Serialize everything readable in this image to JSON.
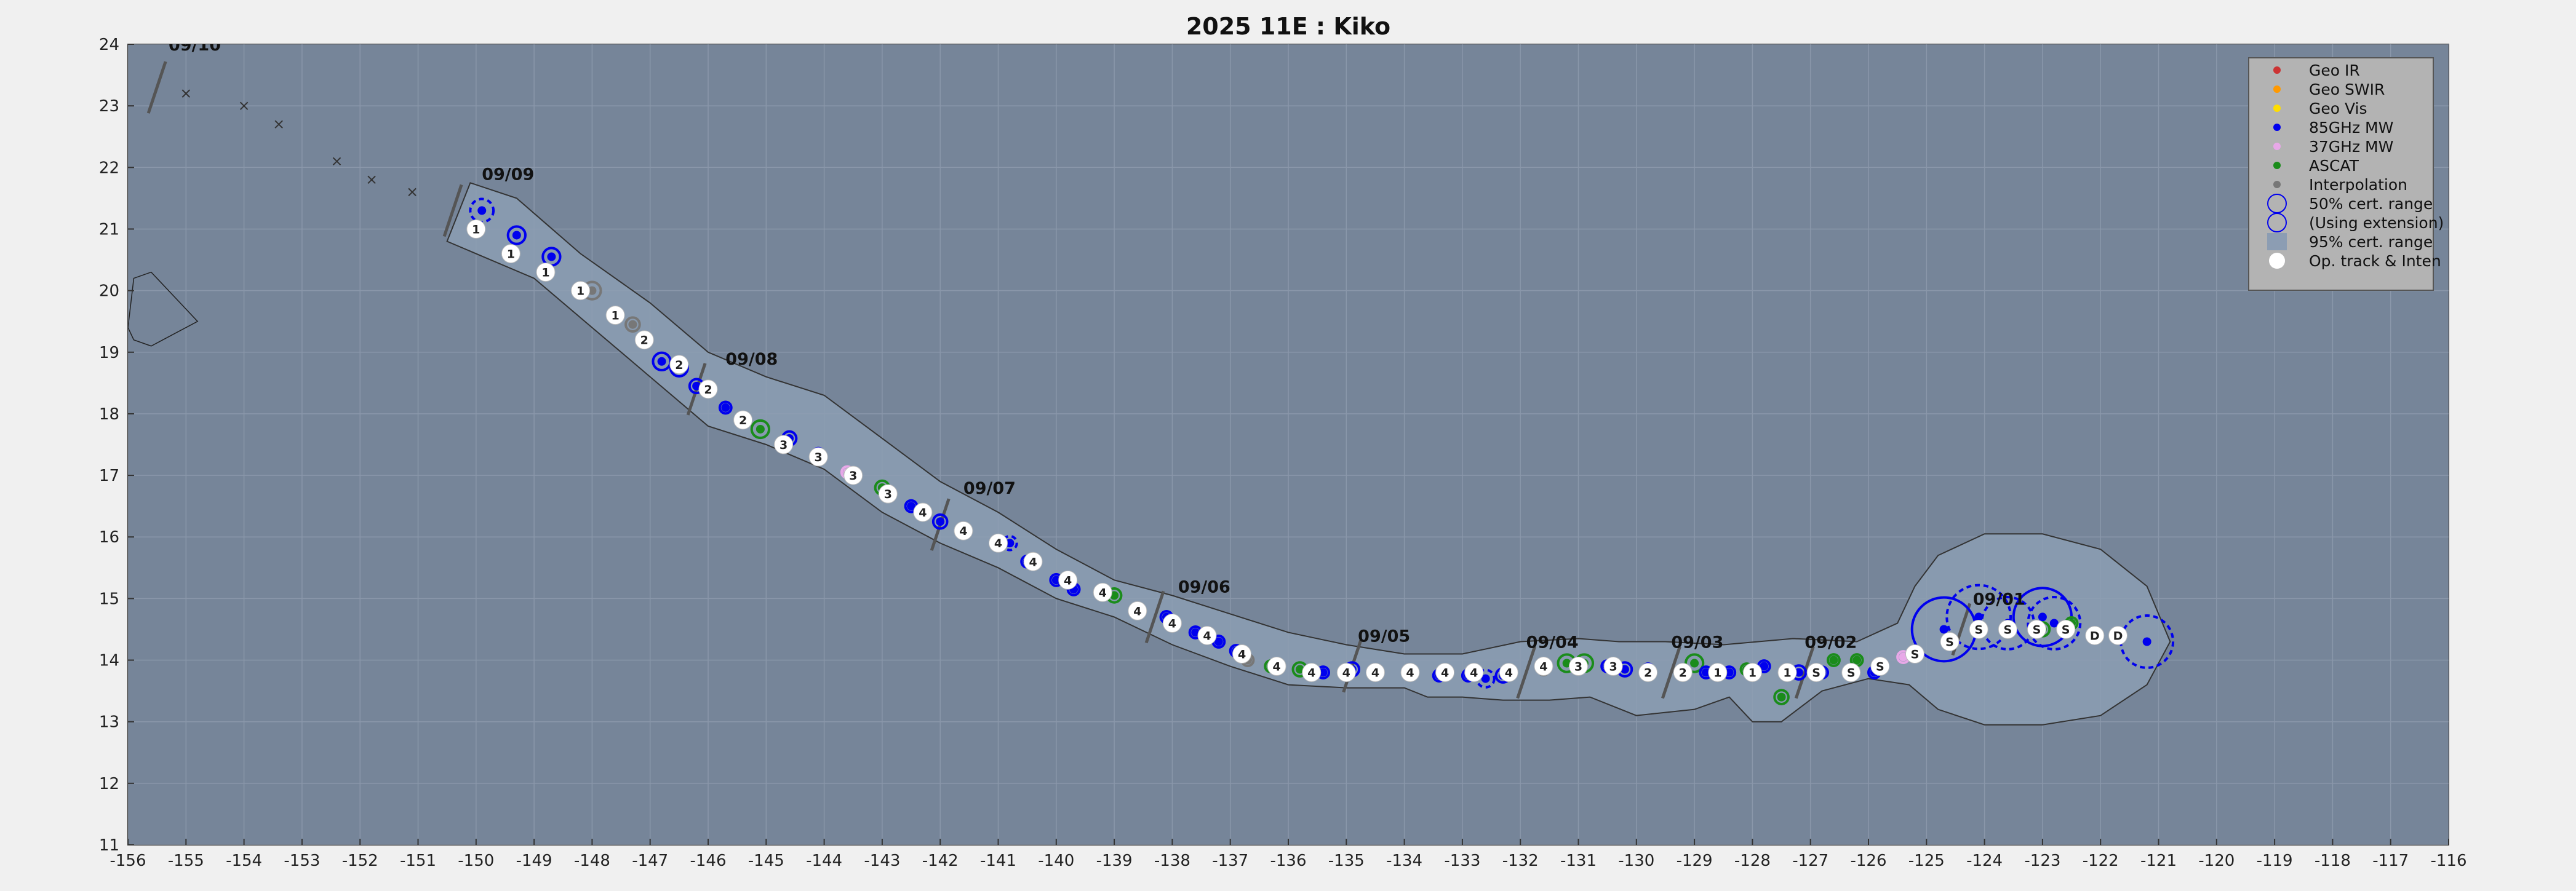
{
  "chart_data": {
    "type": "scatter",
    "title": "2025  11E :  Kiko",
    "xlim": [
      -156,
      -116
    ],
    "ylim": [
      11,
      24
    ],
    "x_ticks": [
      "-156",
      "-155",
      "-154",
      "-153",
      "-152",
      "-151",
      "-150",
      "-149",
      "-148",
      "-147",
      "-146",
      "-145",
      "-144",
      "-143",
      "-142",
      "-141",
      "-140",
      "-139",
      "-138",
      "-137",
      "-136",
      "-135",
      "-134",
      "-133",
      "-132",
      "-131",
      "-130",
      "-129",
      "-128",
      "-127",
      "-126",
      "-125",
      "-124",
      "-123",
      "-122",
      "-121",
      "-120",
      "-119",
      "-118",
      "-117",
      "-116"
    ],
    "y_ticks": [
      "11",
      "12",
      "13",
      "14",
      "15",
      "16",
      "17",
      "18",
      "19",
      "20",
      "21",
      "22",
      "23",
      "24"
    ],
    "grid": true,
    "legend_position": "top-right",
    "legend": [
      "Geo IR",
      "Geo SWIR",
      "Geo Vis",
      "85GHz MW",
      "37GHz MW",
      "ASCAT",
      "Interpolation",
      "50% cert. range",
      "(Using extension)",
      "95% cert. range",
      "Op. track & Inten"
    ],
    "colors": {
      "plot_bg": "#768599",
      "cone": "#8c9db3",
      "geo_ir": "#cc3333",
      "geo_swir": "#ff9900",
      "geo_vis": "#ffdd00",
      "mw85": "#0000ee",
      "mw37": "#e8a8e8",
      "ascat": "#1a8c1a",
      "interp": "#777777",
      "op": "#ffffff"
    },
    "date_labels": [
      {
        "text": "09/10",
        "x": -155.3,
        "y": 23.9
      },
      {
        "text": "09/09",
        "x": -149.9,
        "y": 21.8
      },
      {
        "text": "09/08",
        "x": -145.7,
        "y": 18.8
      },
      {
        "text": "09/07",
        "x": -141.6,
        "y": 16.7
      },
      {
        "text": "09/06",
        "x": -137.9,
        "y": 15.1
      },
      {
        "text": "09/05",
        "x": -134.8,
        "y": 14.3
      },
      {
        "text": "09/04",
        "x": -131.9,
        "y": 14.2
      },
      {
        "text": "09/03",
        "x": -129.4,
        "y": 14.2
      },
      {
        "text": "09/02",
        "x": -127.1,
        "y": 14.2
      },
      {
        "text": "09/01",
        "x": -124.2,
        "y": 14.9
      }
    ],
    "day_ticks": [
      {
        "x": -155.5,
        "y": 23.3
      },
      {
        "x": -150.4,
        "y": 21.3
      },
      {
        "x": -146.2,
        "y": 18.4
      },
      {
        "x": -142.0,
        "y": 16.2
      },
      {
        "x": -138.3,
        "y": 14.7
      },
      {
        "x": -134.9,
        "y": 13.9
      },
      {
        "x": -131.9,
        "y": 13.8
      },
      {
        "x": -129.4,
        "y": 13.8
      },
      {
        "x": -127.1,
        "y": 13.8
      },
      {
        "x": -124.4,
        "y": 14.5
      }
    ],
    "cone_outline": [
      [
        -150.5,
        20.8
      ],
      [
        -150.1,
        21.75
      ],
      [
        -149.3,
        21.5
      ],
      [
        -148.2,
        20.6
      ],
      [
        -147.0,
        19.8
      ],
      [
        -146.0,
        19.0
      ],
      [
        -145.0,
        18.6
      ],
      [
        -144.0,
        18.3
      ],
      [
        -143.0,
        17.6
      ],
      [
        -142.0,
        16.9
      ],
      [
        -141.0,
        16.4
      ],
      [
        -140.0,
        15.8
      ],
      [
        -139.0,
        15.3
      ],
      [
        -138.0,
        15.05
      ],
      [
        -137.0,
        14.75
      ],
      [
        -136.0,
        14.45
      ],
      [
        -135.0,
        14.25
      ],
      [
        -134.0,
        14.1
      ],
      [
        -133.0,
        14.1
      ],
      [
        -132.0,
        14.3
      ],
      [
        -131.0,
        14.35
      ],
      [
        -130.3,
        14.3
      ],
      [
        -129.5,
        14.3
      ],
      [
        -128.5,
        14.25
      ],
      [
        -127.3,
        14.35
      ],
      [
        -126.2,
        14.3
      ],
      [
        -125.5,
        14.6
      ],
      [
        -125.2,
        15.2
      ],
      [
        -124.8,
        15.7
      ],
      [
        -124.0,
        16.05
      ],
      [
        -123.0,
        16.05
      ],
      [
        -122.0,
        15.8
      ],
      [
        -121.2,
        15.2
      ],
      [
        -120.8,
        14.3
      ],
      [
        -121.2,
        13.6
      ],
      [
        -122.0,
        13.1
      ],
      [
        -123.0,
        12.95
      ],
      [
        -124.0,
        12.95
      ],
      [
        -124.8,
        13.2
      ],
      [
        -125.3,
        13.6
      ],
      [
        -126.0,
        13.7
      ],
      [
        -126.8,
        13.5
      ],
      [
        -127.5,
        13.0
      ],
      [
        -128.0,
        13.0
      ],
      [
        -128.4,
        13.4
      ],
      [
        -129.0,
        13.2
      ],
      [
        -130.0,
        13.1
      ],
      [
        -130.8,
        13.4
      ],
      [
        -131.5,
        13.35
      ],
      [
        -132.3,
        13.35
      ],
      [
        -133.0,
        13.4
      ],
      [
        -133.6,
        13.4
      ],
      [
        -134.0,
        13.55
      ],
      [
        -135.0,
        13.55
      ],
      [
        -136.0,
        13.6
      ],
      [
        -137.0,
        13.9
      ],
      [
        -138.0,
        14.25
      ],
      [
        -139.0,
        14.7
      ],
      [
        -140.0,
        15.0
      ],
      [
        -141.0,
        15.5
      ],
      [
        -142.0,
        15.9
      ],
      [
        -143.0,
        16.4
      ],
      [
        -144.0,
        17.1
      ],
      [
        -145.0,
        17.5
      ],
      [
        -146.0,
        17.8
      ],
      [
        -147.0,
        18.6
      ],
      [
        -148.0,
        19.4
      ],
      [
        -149.0,
        20.2
      ],
      [
        -150.0,
        20.6
      ]
    ],
    "op_track": [
      {
        "x": -150,
        "y": 21.0,
        "label": "1"
      },
      {
        "x": -149.4,
        "y": 20.6,
        "label": "1"
      },
      {
        "x": -148.8,
        "y": 20.3,
        "label": "1"
      },
      {
        "x": -148.2,
        "y": 20.0,
        "label": "1"
      },
      {
        "x": -147.6,
        "y": 19.6,
        "label": "1"
      },
      {
        "x": -147.1,
        "y": 19.2,
        "label": "2"
      },
      {
        "x": -146.5,
        "y": 18.8,
        "label": "2"
      },
      {
        "x": -146.0,
        "y": 18.4,
        "label": "2"
      },
      {
        "x": -145.4,
        "y": 17.9,
        "label": "2"
      },
      {
        "x": -144.7,
        "y": 17.5,
        "label": "3"
      },
      {
        "x": -144.1,
        "y": 17.3,
        "label": "3"
      },
      {
        "x": -143.5,
        "y": 17.0,
        "label": "3"
      },
      {
        "x": -142.9,
        "y": 16.7,
        "label": "3"
      },
      {
        "x": -142.3,
        "y": 16.4,
        "label": "4"
      },
      {
        "x": -141.6,
        "y": 16.1,
        "label": "4"
      },
      {
        "x": -141.0,
        "y": 15.9,
        "label": "4"
      },
      {
        "x": -140.4,
        "y": 15.6,
        "label": "4"
      },
      {
        "x": -139.8,
        "y": 15.3,
        "label": "4"
      },
      {
        "x": -139.2,
        "y": 15.1,
        "label": "4"
      },
      {
        "x": -138.6,
        "y": 14.8,
        "label": "4"
      },
      {
        "x": -138.0,
        "y": 14.6,
        "label": "4"
      },
      {
        "x": -137.4,
        "y": 14.4,
        "label": "4"
      },
      {
        "x": -136.8,
        "y": 14.1,
        "label": "4"
      },
      {
        "x": -136.2,
        "y": 13.9,
        "label": "4"
      },
      {
        "x": -135.6,
        "y": 13.8,
        "label": "4"
      },
      {
        "x": -135.0,
        "y": 13.8,
        "label": "4"
      },
      {
        "x": -134.5,
        "y": 13.8,
        "label": "4"
      },
      {
        "x": -133.9,
        "y": 13.8,
        "label": "4"
      },
      {
        "x": -133.3,
        "y": 13.8,
        "label": "4"
      },
      {
        "x": -132.8,
        "y": 13.8,
        "label": "4"
      },
      {
        "x": -132.2,
        "y": 13.8,
        "label": "4"
      },
      {
        "x": -131.6,
        "y": 13.9,
        "label": "4"
      },
      {
        "x": -131.0,
        "y": 13.9,
        "label": "3"
      },
      {
        "x": -130.4,
        "y": 13.9,
        "label": "3"
      },
      {
        "x": -129.8,
        "y": 13.8,
        "label": "2"
      },
      {
        "x": -129.2,
        "y": 13.8,
        "label": "2"
      },
      {
        "x": -128.6,
        "y": 13.8,
        "label": "1"
      },
      {
        "x": -128.0,
        "y": 13.8,
        "label": "1"
      },
      {
        "x": -127.4,
        "y": 13.8,
        "label": "1"
      },
      {
        "x": -126.9,
        "y": 13.8,
        "label": "S"
      },
      {
        "x": -126.3,
        "y": 13.8,
        "label": "S"
      },
      {
        "x": -125.8,
        "y": 13.9,
        "label": "S"
      },
      {
        "x": -125.2,
        "y": 14.1,
        "label": "S"
      },
      {
        "x": -124.6,
        "y": 14.3,
        "label": "S"
      },
      {
        "x": -124.1,
        "y": 14.5,
        "label": "S"
      },
      {
        "x": -123.6,
        "y": 14.5,
        "label": "S"
      },
      {
        "x": -123.1,
        "y": 14.5,
        "label": "S"
      },
      {
        "x": -122.6,
        "y": 14.5,
        "label": "S"
      },
      {
        "x": -122.1,
        "y": 14.4,
        "label": "D"
      },
      {
        "x": -121.7,
        "y": 14.4,
        "label": "D"
      }
    ],
    "fixes": [
      {
        "x": -149.9,
        "y": 21.3,
        "type": "mw85",
        "r": 0.2,
        "dashed": true
      },
      {
        "x": -149.3,
        "y": 20.9,
        "type": "mw85",
        "r": 0.15
      },
      {
        "x": -148.7,
        "y": 20.55,
        "type": "mw85",
        "r": 0.15
      },
      {
        "x": -148.0,
        "y": 20.0,
        "type": "interp",
        "r": 0.15
      },
      {
        "x": -147.3,
        "y": 19.45,
        "type": "interp",
        "r": 0.12
      },
      {
        "x": -146.8,
        "y": 18.85,
        "type": "mw85",
        "r": 0.15
      },
      {
        "x": -146.5,
        "y": 18.75,
        "type": "mw85",
        "r": 0.15
      },
      {
        "x": -146.2,
        "y": 18.45,
        "type": "mw85",
        "r": 0.12
      },
      {
        "x": -145.7,
        "y": 18.1,
        "type": "mw85",
        "r": 0.1
      },
      {
        "x": -145.1,
        "y": 17.75,
        "type": "ascat",
        "r": 0.15
      },
      {
        "x": -144.6,
        "y": 17.6,
        "type": "mw85",
        "r": 0.12
      },
      {
        "x": -144.1,
        "y": 17.35,
        "type": "mw85",
        "r": 0.1
      },
      {
        "x": -143.6,
        "y": 17.05,
        "type": "mw37",
        "r": 0.1
      },
      {
        "x": -143.0,
        "y": 16.8,
        "type": "ascat",
        "r": 0.12
      },
      {
        "x": -142.5,
        "y": 16.5,
        "type": "mw85",
        "r": 0.1
      },
      {
        "x": -142.0,
        "y": 16.25,
        "type": "mw85",
        "r": 0.12
      },
      {
        "x": -140.8,
        "y": 15.9,
        "type": "mw85",
        "r": 0.12,
        "dashed": true
      },
      {
        "x": -140.5,
        "y": 15.6,
        "type": "mw85",
        "r": 0.1
      },
      {
        "x": -140.0,
        "y": 15.3,
        "type": "mw85",
        "r": 0.1
      },
      {
        "x": -139.7,
        "y": 15.15,
        "type": "mw85",
        "r": 0.1
      },
      {
        "x": -139.0,
        "y": 15.05,
        "type": "ascat",
        "r": 0.12
      },
      {
        "x": -138.6,
        "y": 14.8,
        "type": "mw85",
        "r": 0.1
      },
      {
        "x": -138.1,
        "y": 14.7,
        "type": "mw85",
        "r": 0.1
      },
      {
        "x": -137.6,
        "y": 14.45,
        "type": "mw85",
        "r": 0.1
      },
      {
        "x": -137.2,
        "y": 14.3,
        "type": "mw85",
        "r": 0.1
      },
      {
        "x": -136.9,
        "y": 14.15,
        "type": "mw85",
        "r": 0.1
      },
      {
        "x": -136.7,
        "y": 14.0,
        "type": "interp",
        "r": 0.1
      },
      {
        "x": -136.3,
        "y": 13.9,
        "type": "ascat",
        "r": 0.1
      },
      {
        "x": -135.8,
        "y": 13.85,
        "type": "ascat",
        "r": 0.12
      },
      {
        "x": -135.4,
        "y": 13.8,
        "type": "mw85",
        "r": 0.1
      },
      {
        "x": -134.9,
        "y": 13.85,
        "type": "mw85",
        "r": 0.12
      },
      {
        "x": -133.4,
        "y": 13.75,
        "type": "mw85",
        "r": 0.1
      },
      {
        "x": -132.9,
        "y": 13.75,
        "type": "mw85",
        "r": 0.1
      },
      {
        "x": -132.6,
        "y": 13.7,
        "type": "mw85",
        "r": 0.15,
        "dashed": true
      },
      {
        "x": -132.3,
        "y": 13.75,
        "type": "mw85",
        "r": 0.12
      },
      {
        "x": -131.6,
        "y": 13.85,
        "type": "interp",
        "r": 0.1
      },
      {
        "x": -131.2,
        "y": 13.95,
        "type": "ascat",
        "r": 0.15
      },
      {
        "x": -130.9,
        "y": 13.95,
        "type": "ascat",
        "r": 0.15
      },
      {
        "x": -130.5,
        "y": 13.9,
        "type": "mw85",
        "r": 0.1
      },
      {
        "x": -130.2,
        "y": 13.85,
        "type": "mw85",
        "r": 0.12
      },
      {
        "x": -129.8,
        "y": 13.85,
        "type": "mw85",
        "r": 0.1
      },
      {
        "x": -129.0,
        "y": 13.95,
        "type": "ascat",
        "r": 0.15
      },
      {
        "x": -128.8,
        "y": 13.8,
        "type": "mw85",
        "r": 0.1
      },
      {
        "x": -128.4,
        "y": 13.8,
        "type": "mw85",
        "r": 0.1
      },
      {
        "x": -128.1,
        "y": 13.85,
        "type": "ascat",
        "r": 0.1
      },
      {
        "x": -127.8,
        "y": 13.9,
        "type": "mw85",
        "r": 0.1
      },
      {
        "x": -127.5,
        "y": 13.4,
        "type": "ascat",
        "r": 0.12
      },
      {
        "x": -127.2,
        "y": 13.8,
        "type": "mw85",
        "r": 0.12
      },
      {
        "x": -126.8,
        "y": 13.8,
        "type": "mw85",
        "r": 0.1
      },
      {
        "x": -126.6,
        "y": 14.0,
        "type": "ascat",
        "r": 0.1
      },
      {
        "x": -126.2,
        "y": 14.0,
        "type": "ascat",
        "r": 0.1
      },
      {
        "x": -125.9,
        "y": 13.8,
        "type": "mw85",
        "r": 0.1
      },
      {
        "x": -125.4,
        "y": 14.05,
        "type": "mw37",
        "r": 0.1
      },
      {
        "x": -124.7,
        "y": 14.5,
        "type": "mw85",
        "r": 0.55
      },
      {
        "x": -124.1,
        "y": 14.7,
        "type": "mw85",
        "r": 0.55,
        "dashed": true
      },
      {
        "x": -123.6,
        "y": 14.6,
        "type": "mw85",
        "r": 0.45,
        "dashed": true
      },
      {
        "x": -123.0,
        "y": 14.7,
        "type": "mw85",
        "r": 0.5
      },
      {
        "x": -122.8,
        "y": 14.6,
        "type": "mw85",
        "r": 0.45,
        "dashed": true
      },
      {
        "x": -123.0,
        "y": 14.5,
        "type": "ascat",
        "r": 0.12
      },
      {
        "x": -122.5,
        "y": 14.6,
        "type": "ascat",
        "r": 0.1
      },
      {
        "x": -121.2,
        "y": 14.3,
        "type": "mw85",
        "r": 0.45,
        "dashed": true
      }
    ],
    "markers_x": [
      {
        "x": -155.0,
        "y": 23.2
      },
      {
        "x": -154.0,
        "y": 23.0
      },
      {
        "x": -153.4,
        "y": 22.7
      },
      {
        "x": -152.4,
        "y": 22.1
      },
      {
        "x": -151.8,
        "y": 21.8
      },
      {
        "x": -151.1,
        "y": 21.6
      }
    ],
    "coast": [
      [
        [
          -155.9,
          20.2
        ],
        [
          -155.6,
          20.3
        ],
        [
          -155.2,
          19.9
        ],
        [
          -154.8,
          19.5
        ],
        [
          -155.2,
          19.3
        ],
        [
          -155.6,
          19.1
        ],
        [
          -155.9,
          19.2
        ],
        [
          -156,
          19.4
        ]
      ]
    ]
  }
}
